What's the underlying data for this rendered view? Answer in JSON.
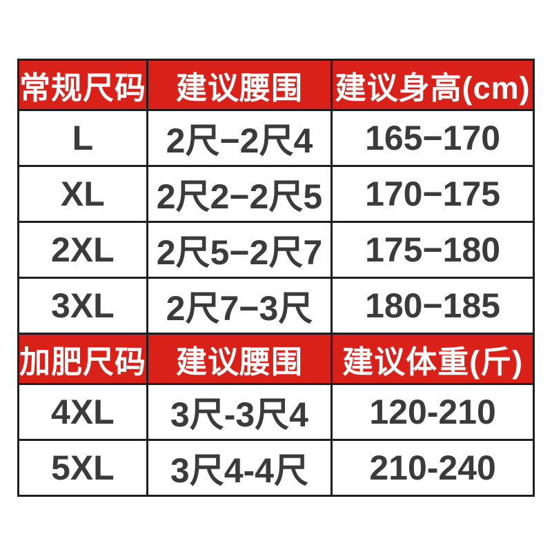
{
  "ui": {
    "accent_red": "#d9211a",
    "header_text_color": "#ffffff",
    "cell_text_color": "#3b3b3b",
    "grid_line_color": "#1e1e1e",
    "background": "#ffffff"
  },
  "chart_data": {
    "type": "table",
    "title": "",
    "sections": [
      {
        "header": [
          "常规尺码",
          "建议腰围",
          "建议身高(cm)"
        ],
        "rows": [
          [
            "L",
            "2尺−2尺4",
            "165−170"
          ],
          [
            "XL",
            "2尺2−2尺5",
            "170−175"
          ],
          [
            "2XL",
            "2尺5−2尺7",
            "175−180"
          ],
          [
            "3XL",
            "2尺7−3尺",
            "180−185"
          ]
        ]
      },
      {
        "header": [
          "加肥尺码",
          "建议腰围",
          "建议体重(斤)"
        ],
        "rows": [
          [
            "4XL",
            "3尺-3尺4",
            "120-210"
          ],
          [
            "5XL",
            "3尺4-4尺",
            "210-240"
          ]
        ]
      }
    ]
  }
}
